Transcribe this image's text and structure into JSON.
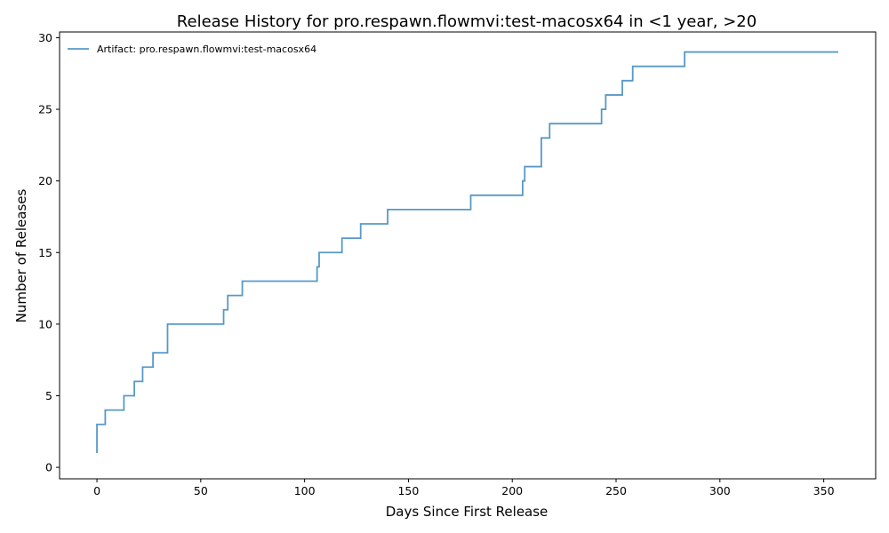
{
  "chart_data": {
    "type": "line",
    "title": "Release History for pro.respawn.flowmvi:test-macosx64 in <1 year, >20",
    "xlabel": "Days Since First Release",
    "ylabel": "Number of Releases",
    "xlim": [
      -18,
      375
    ],
    "ylim": [
      -0.8,
      30.4
    ],
    "xticks": [
      0,
      50,
      100,
      150,
      200,
      250,
      300,
      350
    ],
    "yticks": [
      0,
      5,
      10,
      15,
      20,
      25,
      30
    ],
    "grid": false,
    "legend_position": "top-left",
    "line_style": "step-post",
    "series": [
      {
        "name": "Artifact: pro.respawn.flowmvi:test-macosx64",
        "color": "#1f77b4",
        "x": [
          0,
          0,
          0,
          4,
          13,
          18,
          22,
          27,
          34,
          61,
          63,
          70,
          106,
          107,
          118,
          127,
          140,
          180,
          205,
          206,
          214,
          218,
          243,
          245,
          253,
          258,
          283,
          357
        ],
        "y": [
          1,
          2,
          3,
          4,
          5,
          6,
          7,
          8,
          10,
          11,
          12,
          13,
          14,
          15,
          16,
          17,
          18,
          19,
          20,
          21,
          23,
          24,
          25,
          26,
          27,
          28,
          29,
          29
        ]
      }
    ]
  }
}
